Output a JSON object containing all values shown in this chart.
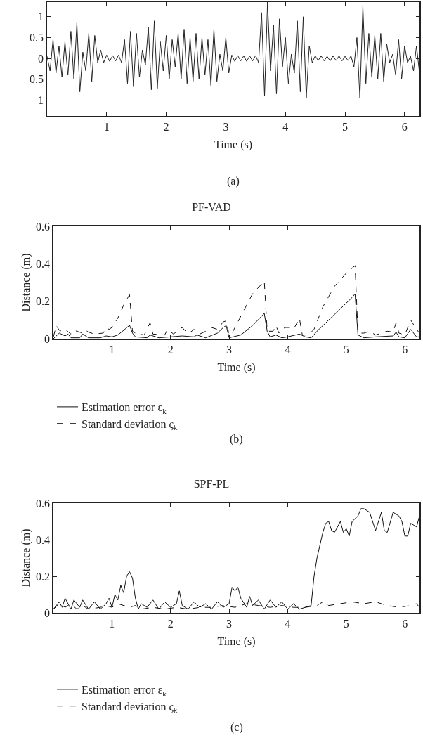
{
  "chart_data": [
    {
      "type": "line",
      "xlabel": "Time (s)",
      "annotations": [
        "(a)"
      ],
      "xlim": [
        0,
        6.25
      ],
      "ylim": [
        -1.38,
        1.35
      ],
      "xticks": [
        1,
        2,
        3,
        4,
        5,
        6
      ],
      "yticks": [
        {
          "value": -1,
          "label": "−1"
        },
        {
          "value": -0.5,
          "label": "−0.5"
        },
        0,
        0.5,
        1
      ],
      "x": [
        0,
        0.05,
        0.1,
        0.15,
        0.2,
        0.25,
        0.3,
        0.35,
        0.4,
        0.45,
        0.5,
        0.55,
        0.6,
        0.65,
        0.7,
        0.75,
        0.8,
        0.85,
        0.9,
        0.95,
        1,
        1.05,
        1.1,
        1.15,
        1.2,
        1.25,
        1.3,
        1.35,
        1.4,
        1.45,
        1.5,
        1.55,
        1.6,
        1.65,
        1.7,
        1.75,
        1.8,
        1.85,
        1.9,
        1.95,
        2,
        2.05,
        2.1,
        2.15,
        2.2,
        2.25,
        2.3,
        2.35,
        2.4,
        2.45,
        2.5,
        2.55,
        2.6,
        2.65,
        2.7,
        2.75,
        2.8,
        2.85,
        2.9,
        2.95,
        3,
        3.05,
        3.1,
        3.15,
        3.2,
        3.25,
        3.3,
        3.35,
        3.4,
        3.45,
        3.5,
        3.55,
        3.6,
        3.65,
        3.7,
        3.75,
        3.8,
        3.85,
        3.9,
        3.95,
        4,
        4.05,
        4.1,
        4.15,
        4.2,
        4.25,
        4.3,
        4.35,
        4.4,
        4.45,
        4.5,
        4.55,
        4.6,
        4.65,
        4.7,
        4.75,
        4.8,
        4.85,
        4.9,
        4.95,
        5,
        5.05,
        5.1,
        5.15,
        5.2,
        5.25,
        5.3,
        5.35,
        5.4,
        5.45,
        5.5,
        5.55,
        5.6,
        5.65,
        5.7,
        5.75,
        5.8,
        5.85,
        5.9,
        5.95,
        6,
        6.05,
        6.1,
        6.15,
        6.2,
        6.25
      ],
      "series": [
        {
          "color": "#222222",
          "values": [
            0.05,
            -0.3,
            0.45,
            -0.35,
            0.3,
            -0.45,
            0.4,
            -0.4,
            0.65,
            -0.5,
            0.85,
            -0.8,
            0.15,
            -0.3,
            0.6,
            -0.55,
            0.55,
            -0.1,
            0.2,
            -0.1,
            0.08,
            -0.07,
            0.07,
            -0.06,
            0.08,
            -0.1,
            0.45,
            -0.6,
            0.65,
            -0.68,
            0.6,
            -0.45,
            0.2,
            -0.15,
            0.75,
            -0.75,
            0.9,
            -0.72,
            0.4,
            -0.3,
            0.55,
            -0.5,
            0.45,
            -0.2,
            0.6,
            -0.5,
            0.7,
            -0.6,
            0.5,
            -0.55,
            0.6,
            -0.5,
            0.5,
            -0.4,
            0.45,
            -0.65,
            0.7,
            -0.55,
            0.1,
            -0.3,
            0.5,
            -0.35,
            0.08,
            -0.07,
            0.07,
            -0.06,
            0.06,
            -0.07,
            0.06,
            -0.06,
            0.07,
            -0.1,
            1.1,
            -0.9,
            1.35,
            -0.3,
            0.8,
            -0.85,
            0.95,
            -0.2,
            0.5,
            -0.6,
            0.1,
            -0.35,
            0.9,
            -0.8,
            1.0,
            -0.95,
            0.3,
            -0.1,
            0.06,
            -0.05,
            0.06,
            -0.06,
            0.05,
            -0.06,
            0.06,
            -0.05,
            0.06,
            -0.06,
            0.05,
            -0.05,
            0.06,
            -0.2,
            0.5,
            -0.95,
            1.25,
            -0.6,
            0.6,
            -0.45,
            0.55,
            -0.5,
            0.6,
            -0.55,
            0.35,
            -0.1,
            0.1,
            -0.4,
            0.45,
            -0.5,
            0.3,
            -0.1,
            0.05,
            -0.3,
            0.3,
            -0.35
          ]
        }
      ]
    },
    {
      "type": "line",
      "title": "PF-VAD",
      "xlabel": "Time (s)",
      "ylabel": "Distance (m)",
      "annotations": [
        "(b)"
      ],
      "legend": "bottom",
      "xlim": [
        0,
        6.25
      ],
      "ylim": [
        0,
        0.6
      ],
      "xticks": [
        1,
        2,
        3,
        4,
        5,
        6
      ],
      "yticks": [
        0,
        0.2,
        0.4,
        0.6
      ],
      "series": [
        {
          "name": "Estimation error ε$_{k}$",
          "color": "#111111",
          "line_style": "solid",
          "x": [
            0,
            0.1,
            0.2,
            0.25,
            0.3,
            0.45,
            0.5,
            0.6,
            0.8,
            0.9,
            1,
            1.1,
            1.2,
            1.3,
            1.35,
            1.4,
            1.6,
            1.65,
            1.8,
            2,
            2.2,
            2.4,
            2.45,
            2.5,
            2.6,
            2.8,
            2.9,
            2.95,
            3,
            3.2,
            3.4,
            3.6,
            3.65,
            3.7,
            3.8,
            3.9,
            4,
            4.2,
            4.3,
            4.4,
            4.5,
            4.8,
            5.1,
            5.15,
            5.2,
            5.3,
            5.5,
            5.8,
            5.85,
            5.9,
            6,
            6.1,
            6.2,
            6.25
          ],
          "values": [
            0,
            0.03,
            0.015,
            0.025,
            0.005,
            0.005,
            0.025,
            0.005,
            0.005,
            0.015,
            0.01,
            0.02,
            0.045,
            0.072,
            0.03,
            0.01,
            0.005,
            0.02,
            0.005,
            0.01,
            0.015,
            0.01,
            0.02,
            0.015,
            0.005,
            0.03,
            0.06,
            0.07,
            0.005,
            0.02,
            0.07,
            0.135,
            0.04,
            0.01,
            0.02,
            0.005,
            0.01,
            0.025,
            0.01,
            0.005,
            0.04,
            0.13,
            0.22,
            0.24,
            0.02,
            0.005,
            0.01,
            0.015,
            0.035,
            0.01,
            0.005,
            0.05,
            0.01,
            0.01
          ]
        },
        {
          "name": "Standard deviation ς$_{k}$",
          "color": "#111111",
          "line_style": "dashed",
          "x": [
            0,
            0.05,
            0.1,
            0.15,
            0.2,
            0.3,
            0.35,
            0.5,
            0.55,
            0.6,
            0.7,
            0.85,
            0.9,
            0.95,
            1,
            1.1,
            1.2,
            1.3,
            1.35,
            1.4,
            1.55,
            1.65,
            1.7,
            1.9,
            1.95,
            2.05,
            2.15,
            2.2,
            2.3,
            2.4,
            2.5,
            2.6,
            2.7,
            2.8,
            2.9,
            2.95,
            3,
            3.05,
            3.2,
            3.4,
            3.55,
            3.6,
            3.65,
            3.75,
            3.8,
            3.85,
            3.95,
            4.05,
            4.1,
            4.2,
            4.25,
            4.35,
            4.45,
            4.6,
            4.8,
            5,
            5.15,
            5.2,
            5.3,
            5.4,
            5.5,
            5.7,
            5.8,
            5.85,
            5.9,
            6,
            6.1,
            6.2,
            6.25
          ],
          "values": [
            0.01,
            0.07,
            0.045,
            0.04,
            0.05,
            0.025,
            0.045,
            0.03,
            0.045,
            0.035,
            0.025,
            0.03,
            0.06,
            0.05,
            0.06,
            0.11,
            0.18,
            0.235,
            0.04,
            0.03,
            0.02,
            0.085,
            0.025,
            0.02,
            0.05,
            0.025,
            0.05,
            0.06,
            0.025,
            0.05,
            0.025,
            0.04,
            0.06,
            0.05,
            0.09,
            0.095,
            0.02,
            0.03,
            0.12,
            0.24,
            0.29,
            0.31,
            0.04,
            0.04,
            0.07,
            0.03,
            0.06,
            0.06,
            0.05,
            0.11,
            0.02,
            0.02,
            0.05,
            0.17,
            0.28,
            0.35,
            0.39,
            0.03,
            0.03,
            0.04,
            0.02,
            0.04,
            0.035,
            0.085,
            0.03,
            0.02,
            0.1,
            0.05,
            0.03
          ]
        }
      ]
    },
    {
      "type": "line",
      "title": "SPF-PL",
      "xlabel": "Time (s)",
      "ylabel": "Distance (m)",
      "annotations": [
        "(c)"
      ],
      "legend": "bottom",
      "xlim": [
        0,
        6.25
      ],
      "ylim": [
        0,
        0.6
      ],
      "xticks": [
        1,
        2,
        3,
        4,
        5,
        6
      ],
      "yticks": [
        0,
        0.2,
        0.4,
        0.6
      ],
      "series": [
        {
          "name": "Estimation error ε$_{k}$",
          "color": "#111111",
          "line_style": "solid",
          "x": [
            0,
            0.1,
            0.15,
            0.2,
            0.3,
            0.35,
            0.45,
            0.5,
            0.6,
            0.7,
            0.8,
            0.9,
            0.95,
            1,
            1.05,
            1.1,
            1.15,
            1.2,
            1.25,
            1.3,
            1.35,
            1.4,
            1.45,
            1.5,
            1.6,
            1.7,
            1.8,
            1.9,
            2,
            2.1,
            2.15,
            2.2,
            2.3,
            2.4,
            2.5,
            2.6,
            2.7,
            2.8,
            2.9,
            3,
            3.05,
            3.1,
            3.15,
            3.2,
            3.3,
            3.35,
            3.4,
            3.5,
            3.6,
            3.7,
            3.8,
            3.9,
            4,
            4.1,
            4.2,
            4.3,
            4.4,
            4.45,
            4.5,
            4.55,
            4.6,
            4.65,
            4.7,
            4.75,
            4.8,
            4.9,
            4.95,
            5,
            5.05,
            5.1,
            5.2,
            5.25,
            5.3,
            5.4,
            5.45,
            5.5,
            5.6,
            5.65,
            5.7,
            5.8,
            5.9,
            5.95,
            6,
            6.05,
            6.1,
            6.2,
            6.25
          ],
          "values": [
            0.02,
            0.06,
            0.03,
            0.08,
            0.02,
            0.07,
            0.03,
            0.07,
            0.02,
            0.06,
            0.02,
            0.05,
            0.08,
            0.03,
            0.1,
            0.07,
            0.15,
            0.11,
            0.2,
            0.225,
            0.19,
            0.08,
            0.02,
            0.05,
            0.03,
            0.07,
            0.02,
            0.06,
            0.03,
            0.05,
            0.12,
            0.04,
            0.02,
            0.06,
            0.03,
            0.05,
            0.02,
            0.06,
            0.03,
            0.05,
            0.14,
            0.12,
            0.14,
            0.08,
            0.03,
            0.09,
            0.04,
            0.07,
            0.02,
            0.07,
            0.03,
            0.06,
            0.02,
            0.05,
            0.02,
            0.03,
            0.04,
            0.2,
            0.3,
            0.37,
            0.44,
            0.49,
            0.5,
            0.45,
            0.44,
            0.5,
            0.44,
            0.46,
            0.42,
            0.5,
            0.53,
            0.57,
            0.57,
            0.55,
            0.5,
            0.45,
            0.55,
            0.45,
            0.44,
            0.55,
            0.53,
            0.5,
            0.42,
            0.42,
            0.49,
            0.47,
            0.53
          ]
        },
        {
          "name": "Standard deviation ς$_{k}$",
          "color": "#111111",
          "line_style": "dashed",
          "x": [
            0,
            0.1,
            0.2,
            0.3,
            0.4,
            0.5,
            0.6,
            0.8,
            0.9,
            1,
            1.1,
            1.2,
            1.3,
            1.4,
            1.5,
            1.7,
            1.9,
            2.1,
            2.3,
            2.5,
            2.7,
            2.9,
            3.1,
            3.3,
            3.5,
            3.7,
            3.9,
            4.1,
            4.3,
            4.5,
            4.6,
            4.7,
            4.9,
            5.1,
            5.3,
            5.5,
            5.7,
            5.9,
            6.1,
            6.2,
            6.25
          ],
          "values": [
            0.02,
            0.05,
            0.03,
            0.05,
            0.02,
            0.04,
            0.02,
            0.03,
            0.04,
            0.03,
            0.05,
            0.04,
            0.03,
            0.04,
            0.02,
            0.03,
            0.02,
            0.03,
            0.02,
            0.03,
            0.03,
            0.04,
            0.03,
            0.05,
            0.04,
            0.03,
            0.04,
            0.03,
            0.03,
            0.04,
            0.06,
            0.04,
            0.05,
            0.06,
            0.05,
            0.06,
            0.04,
            0.03,
            0.04,
            0.05,
            0.03
          ]
        }
      ]
    }
  ]
}
